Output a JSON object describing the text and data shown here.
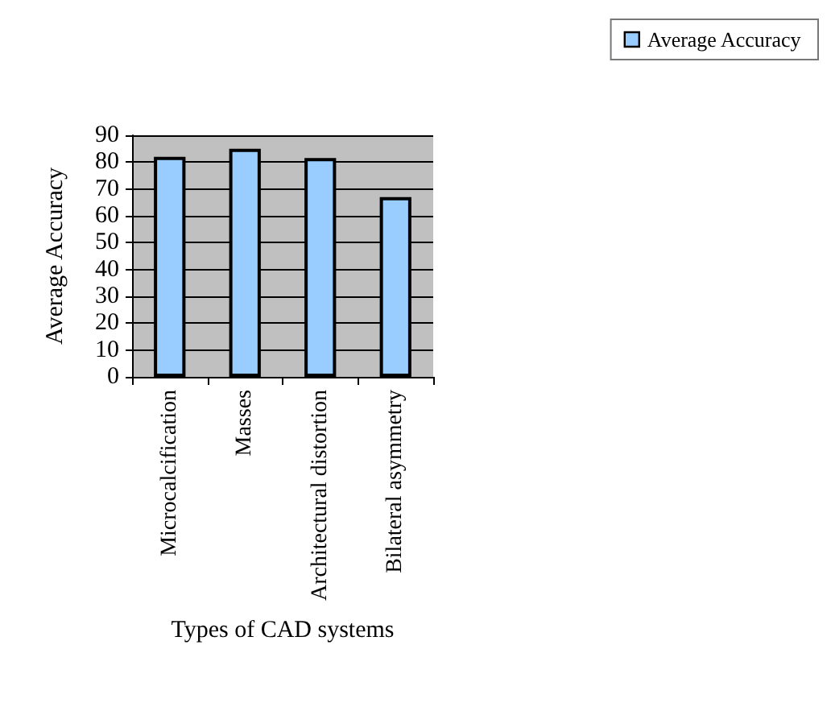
{
  "chart_data": {
    "type": "bar",
    "xlabel": "Types of CAD systems",
    "ylabel": "Average Accuracy",
    "categories": [
      "Microcalcification",
      "Masses",
      "Architectural distortion",
      "Bilateral asymmetry"
    ],
    "series": [
      {
        "name": "Average Accuracy",
        "color": "#99ccff",
        "values": [
          82,
          85,
          81.5,
          67
        ]
      }
    ],
    "ylim": [
      0,
      90
    ],
    "yticks": [
      0,
      10,
      20,
      30,
      40,
      50,
      60,
      70,
      80,
      90
    ],
    "grid": "y",
    "legend": "top right"
  }
}
